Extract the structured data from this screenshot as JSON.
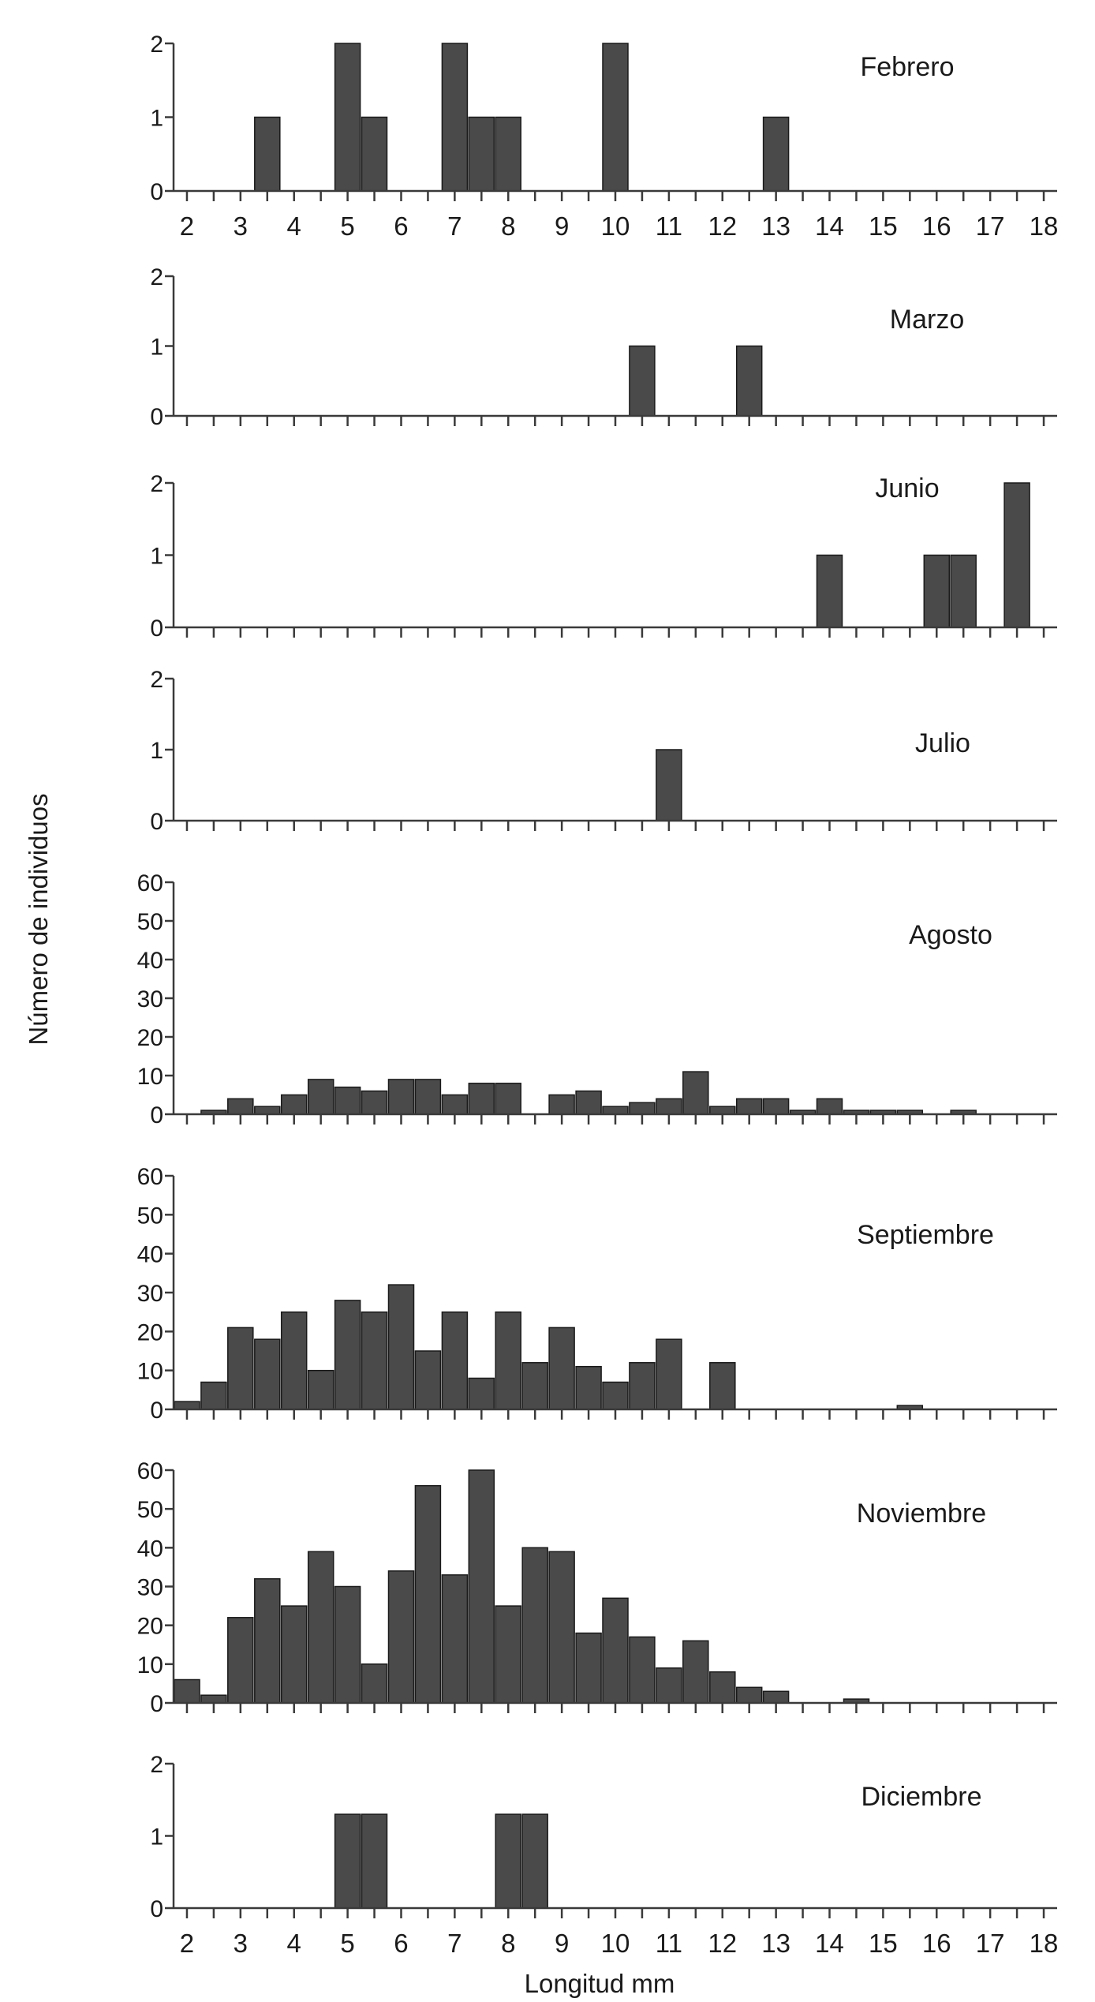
{
  "figure": {
    "ylabel": "Número de individuos",
    "xlabel": "Longitud mm"
  },
  "chart_data": [
    {
      "type": "bar",
      "title": "Febrero",
      "xlim": [
        1.75,
        18.25
      ],
      "ylim": [
        0,
        2
      ],
      "yticks": [
        0,
        1,
        2
      ],
      "xticks": [
        2,
        3,
        4,
        5,
        6,
        7,
        8,
        9,
        10,
        11,
        12,
        13,
        14,
        15,
        16,
        17,
        18
      ],
      "show_xtick_labels": true,
      "x": [
        3.5,
        5.0,
        5.5,
        7.0,
        7.5,
        8.0,
        10.0,
        13.0
      ],
      "values": [
        1,
        2,
        1,
        2,
        1,
        1,
        2,
        1
      ]
    },
    {
      "type": "bar",
      "title": "Marzo",
      "xlim": [
        1.75,
        18.25
      ],
      "ylim": [
        0,
        2
      ],
      "yticks": [
        0,
        1,
        2
      ],
      "xticks": [
        2,
        3,
        4,
        5,
        6,
        7,
        8,
        9,
        10,
        11,
        12,
        13,
        14,
        15,
        16,
        17,
        18
      ],
      "show_xtick_labels": false,
      "x": [
        10.5,
        12.5
      ],
      "values": [
        1,
        1
      ]
    },
    {
      "type": "bar",
      "title": "Junio",
      "xlim": [
        1.75,
        18.25
      ],
      "ylim": [
        0,
        2
      ],
      "yticks": [
        0,
        1,
        2
      ],
      "xticks": [
        2,
        3,
        4,
        5,
        6,
        7,
        8,
        9,
        10,
        11,
        12,
        13,
        14,
        15,
        16,
        17,
        18
      ],
      "show_xtick_labels": false,
      "x": [
        14.0,
        16.0,
        16.5,
        17.5
      ],
      "values": [
        1,
        1,
        1,
        2
      ]
    },
    {
      "type": "bar",
      "title": "Julio",
      "xlim": [
        1.75,
        18.25
      ],
      "ylim": [
        0,
        2
      ],
      "yticks": [
        0,
        1,
        2
      ],
      "xticks": [
        2,
        3,
        4,
        5,
        6,
        7,
        8,
        9,
        10,
        11,
        12,
        13,
        14,
        15,
        16,
        17,
        18
      ],
      "show_xtick_labels": false,
      "x": [
        11.0
      ],
      "values": [
        1
      ]
    },
    {
      "type": "bar",
      "title": "Agosto",
      "xlim": [
        1.75,
        18.25
      ],
      "ylim": [
        0,
        60
      ],
      "yticks": [
        0,
        10,
        20,
        30,
        40,
        50,
        60
      ],
      "xticks": [
        2,
        3,
        4,
        5,
        6,
        7,
        8,
        9,
        10,
        11,
        12,
        13,
        14,
        15,
        16,
        17,
        18
      ],
      "show_xtick_labels": false,
      "x": [
        2.5,
        3.0,
        3.5,
        4.0,
        4.5,
        5.0,
        5.5,
        6.0,
        6.5,
        7.0,
        7.5,
        8.0,
        9.0,
        9.5,
        10.0,
        10.5,
        11.0,
        11.5,
        12.0,
        12.5,
        13.0,
        13.5,
        14.0,
        14.5,
        15.0,
        15.5,
        16.5
      ],
      "values": [
        1,
        4,
        2,
        5,
        9,
        7,
        6,
        9,
        9,
        5,
        8,
        8,
        5,
        6,
        2,
        3,
        4,
        11,
        2,
        4,
        4,
        1,
        4,
        1,
        1,
        1,
        1
      ]
    },
    {
      "type": "bar",
      "title": "Septiembre",
      "xlim": [
        1.75,
        18.25
      ],
      "ylim": [
        0,
        60
      ],
      "yticks": [
        0,
        10,
        20,
        30,
        40,
        50,
        60
      ],
      "xticks": [
        2,
        3,
        4,
        5,
        6,
        7,
        8,
        9,
        10,
        11,
        12,
        13,
        14,
        15,
        16,
        17,
        18
      ],
      "show_xtick_labels": false,
      "x": [
        2.0,
        2.5,
        3.0,
        3.5,
        4.0,
        4.5,
        5.0,
        5.5,
        6.0,
        6.5,
        7.0,
        7.5,
        8.0,
        8.5,
        9.0,
        9.5,
        10.0,
        10.5,
        11.0,
        12.0,
        15.5
      ],
      "values": [
        2,
        7,
        21,
        18,
        25,
        10,
        28,
        25,
        32,
        15,
        25,
        8,
        25,
        12,
        21,
        11,
        7,
        12,
        18,
        12,
        1
      ]
    },
    {
      "type": "bar",
      "title": "Noviembre",
      "xlim": [
        1.75,
        18.25
      ],
      "ylim": [
        0,
        60
      ],
      "yticks": [
        0,
        10,
        20,
        30,
        40,
        50,
        60
      ],
      "xticks": [
        2,
        3,
        4,
        5,
        6,
        7,
        8,
        9,
        10,
        11,
        12,
        13,
        14,
        15,
        16,
        17,
        18
      ],
      "show_xtick_labels": false,
      "x": [
        2.0,
        2.5,
        3.0,
        3.5,
        4.0,
        4.5,
        5.0,
        5.5,
        6.0,
        6.5,
        7.0,
        7.5,
        8.0,
        8.5,
        9.0,
        9.5,
        10.0,
        10.5,
        11.0,
        11.5,
        12.0,
        12.5,
        13.0,
        14.5
      ],
      "values": [
        6,
        2,
        22,
        32,
        25,
        39,
        30,
        10,
        34,
        56,
        33,
        60,
        25,
        40,
        39,
        18,
        27,
        17,
        9,
        16,
        8,
        4,
        3,
        1
      ]
    },
    {
      "type": "bar",
      "title": "Diciembre",
      "xlim": [
        1.75,
        18.25
      ],
      "ylim": [
        0,
        2
      ],
      "yticks": [
        0,
        1,
        2
      ],
      "xticks": [
        2,
        3,
        4,
        5,
        6,
        7,
        8,
        9,
        10,
        11,
        12,
        13,
        14,
        15,
        16,
        17,
        18
      ],
      "show_xtick_labels": true,
      "x": [
        5.0,
        5.5,
        8.0,
        8.5
      ],
      "values": [
        1.3,
        1.3,
        1.3,
        1.3
      ]
    }
  ]
}
